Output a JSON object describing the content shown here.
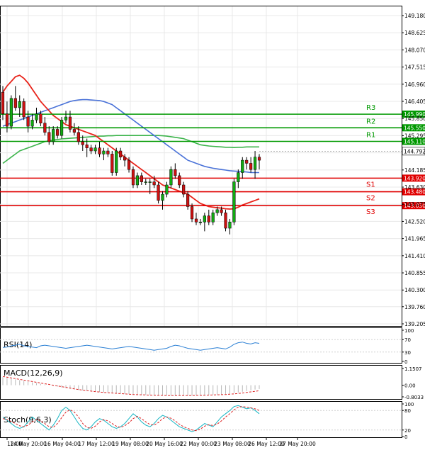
{
  "chart_data": [
    {
      "type": "candlestick",
      "name": "price",
      "y_ticks": [
        "149.180",
        "148.625",
        "148.070",
        "147.515",
        "146.960",
        "146.405",
        "145.850",
        "145.295",
        "144.740",
        "144.185",
        "143.630",
        "143.075",
        "142.520",
        "141.965",
        "141.410",
        "140.855",
        "140.300",
        "139.760",
        "139.205"
      ],
      "ylim": [
        139.205,
        149.18
      ],
      "x_labels": [
        "12:00",
        "14 May 20:00",
        "16 May 04:00",
        "17 May 12:00",
        "19 May 08:00",
        "20 May 16:00",
        "22 May 00:00",
        "23 May 08:00",
        "26 May 12:00",
        "27 May 20:00"
      ],
      "current_price": {
        "label": "144.792",
        "value": 144.792
      },
      "levels": [
        {
          "name": "R3",
          "label": "145.990",
          "value": 145.99,
          "color": "#009900"
        },
        {
          "name": "R2",
          "label": "145.550",
          "value": 145.55,
          "color": "#009900"
        },
        {
          "name": "R1",
          "label": "145.110",
          "value": 145.11,
          "color": "#009900"
        },
        {
          "name": "S1",
          "label": "143.920",
          "value": 143.92,
          "color": "#e00000"
        },
        {
          "name": "S2",
          "label": "143.480",
          "value": 143.48,
          "color": "#e00000"
        },
        {
          "name": "S3",
          "label": "143.030",
          "value": 143.03,
          "color": "#e00000"
        }
      ],
      "candles": [
        [
          146.7,
          146.9,
          145.8,
          146.0
        ],
        [
          146.0,
          146.4,
          145.4,
          145.6
        ],
        [
          145.6,
          146.6,
          145.5,
          146.5
        ],
        [
          146.5,
          146.9,
          146.1,
          146.2
        ],
        [
          146.2,
          146.6,
          145.9,
          146.4
        ],
        [
          146.4,
          146.5,
          145.8,
          145.9
        ],
        [
          145.9,
          146.1,
          145.4,
          145.6
        ],
        [
          145.6,
          146.0,
          145.5,
          145.8
        ],
        [
          145.8,
          146.2,
          145.7,
          146.0
        ],
        [
          146.0,
          146.1,
          145.6,
          145.7
        ],
        [
          145.7,
          145.9,
          145.3,
          145.4
        ],
        [
          145.4,
          145.6,
          145.0,
          145.1
        ],
        [
          145.1,
          145.6,
          145.0,
          145.5
        ],
        [
          145.5,
          145.6,
          145.2,
          145.3
        ],
        [
          145.3,
          145.9,
          145.2,
          145.8
        ],
        [
          145.8,
          146.1,
          145.7,
          145.9
        ],
        [
          145.9,
          146.1,
          145.4,
          145.5
        ],
        [
          145.5,
          145.7,
          145.3,
          145.4
        ],
        [
          145.4,
          145.6,
          145.0,
          145.1
        ],
        [
          145.1,
          145.3,
          144.8,
          145.0
        ],
        [
          145.0,
          145.2,
          144.6,
          144.9
        ],
        [
          144.9,
          145.0,
          144.7,
          144.8
        ],
        [
          144.8,
          145.0,
          144.7,
          144.9
        ],
        [
          144.9,
          145.1,
          144.6,
          144.7
        ],
        [
          144.7,
          144.9,
          144.5,
          144.8
        ],
        [
          144.8,
          144.9,
          144.6,
          144.7
        ],
        [
          144.7,
          144.8,
          144.0,
          144.1
        ],
        [
          144.1,
          144.9,
          144.0,
          144.8
        ],
        [
          144.8,
          144.9,
          144.5,
          144.6
        ],
        [
          144.6,
          144.7,
          144.3,
          144.5
        ],
        [
          144.5,
          144.6,
          144.1,
          144.2
        ],
        [
          144.2,
          144.3,
          143.6,
          143.7
        ],
        [
          143.7,
          144.1,
          143.6,
          144.0
        ],
        [
          144.0,
          144.1,
          143.7,
          143.8
        ],
        [
          143.8,
          143.9,
          143.7,
          143.8
        ],
        [
          143.8,
          143.9,
          143.4,
          143.8
        ],
        [
          143.8,
          144.0,
          143.6,
          143.7
        ],
        [
          143.7,
          143.8,
          143.1,
          143.2
        ],
        [
          143.2,
          143.5,
          142.9,
          143.4
        ],
        [
          143.4,
          143.8,
          143.3,
          143.7
        ],
        [
          143.7,
          144.3,
          143.6,
          144.2
        ],
        [
          144.2,
          144.4,
          143.9,
          144.0
        ],
        [
          144.0,
          144.1,
          143.6,
          143.7
        ],
        [
          143.7,
          143.8,
          143.3,
          143.4
        ],
        [
          143.4,
          143.5,
          142.9,
          143.0
        ],
        [
          143.0,
          143.1,
          142.5,
          142.6
        ],
        [
          142.6,
          142.8,
          142.4,
          142.5
        ],
        [
          142.5,
          142.6,
          142.4,
          142.5
        ],
        [
          142.5,
          142.8,
          142.2,
          142.7
        ],
        [
          142.7,
          142.9,
          142.4,
          142.5
        ],
        [
          142.5,
          142.9,
          142.4,
          142.8
        ],
        [
          142.8,
          143.0,
          142.7,
          142.9
        ],
        [
          142.9,
          143.0,
          142.7,
          142.8
        ],
        [
          142.8,
          142.9,
          142.2,
          142.3
        ],
        [
          142.3,
          142.6,
          142.1,
          142.5
        ],
        [
          142.5,
          143.9,
          142.4,
          143.8
        ],
        [
          143.8,
          144.2,
          143.6,
          144.1
        ],
        [
          144.1,
          144.6,
          143.9,
          144.5
        ],
        [
          144.5,
          144.6,
          144.2,
          144.4
        ],
        [
          144.4,
          144.6,
          144.1,
          144.2
        ],
        [
          144.2,
          144.8,
          143.9,
          144.6
        ],
        [
          144.6,
          144.7,
          144.2,
          144.5
        ]
      ],
      "sma_red": [
        146.7,
        146.9,
        147.05,
        147.2,
        147.25,
        147.15,
        147.0,
        146.8,
        146.6,
        146.4,
        146.25,
        146.1,
        145.95,
        145.85,
        145.75,
        145.65,
        145.6,
        145.55,
        145.5,
        145.45,
        145.4,
        145.35,
        145.3,
        145.2,
        145.1,
        145.0,
        144.9,
        144.8,
        144.7,
        144.6,
        144.5,
        144.4,
        144.3,
        144.2,
        144.1,
        144.0,
        143.9,
        143.8,
        143.7,
        143.65,
        143.6,
        143.55,
        143.5,
        143.45,
        143.4,
        143.3,
        143.2,
        143.1,
        143.05,
        143.0,
        142.98,
        142.96,
        142.95,
        142.93,
        142.92,
        142.93,
        142.98,
        143.05,
        143.1,
        143.15,
        143.2,
        143.25
      ],
      "sma_blue": [
        145.6,
        145.65,
        145.7,
        145.75,
        145.8,
        145.85,
        145.9,
        145.95,
        146.0,
        146.05,
        146.1,
        146.15,
        146.2,
        146.25,
        146.3,
        146.35,
        146.4,
        146.43,
        146.45,
        146.46,
        146.46,
        146.45,
        146.44,
        146.43,
        146.4,
        146.35,
        146.3,
        146.2,
        146.1,
        146.0,
        145.9,
        145.8,
        145.7,
        145.6,
        145.5,
        145.4,
        145.3,
        145.2,
        145.1,
        145.0,
        144.9,
        144.8,
        144.7,
        144.6,
        144.5,
        144.45,
        144.4,
        144.35,
        144.3,
        144.27,
        144.24,
        144.22,
        144.2,
        144.18,
        144.16,
        144.15,
        144.14,
        144.13,
        144.12,
        144.1,
        144.1,
        144.1
      ],
      "sma_green": [
        144.4,
        144.5,
        144.6,
        144.7,
        144.8,
        144.85,
        144.9,
        144.95,
        145.0,
        145.05,
        145.1,
        145.13,
        145.15,
        145.17,
        145.19,
        145.2,
        145.21,
        145.22,
        145.23,
        145.24,
        145.25,
        145.26,
        145.27,
        145.28,
        145.28,
        145.29,
        145.29,
        145.3,
        145.3,
        145.3,
        145.3,
        145.3,
        145.3,
        145.3,
        145.3,
        145.3,
        145.3,
        145.3,
        145.29,
        145.28,
        145.26,
        145.24,
        145.22,
        145.2,
        145.15,
        145.1,
        145.05,
        145.0,
        144.98,
        144.96,
        144.95,
        144.94,
        144.93,
        144.92,
        144.92,
        144.91,
        144.92,
        144.92,
        144.93,
        144.93,
        144.93,
        144.93
      ]
    },
    {
      "type": "line",
      "name": "RSI(14)",
      "label": "RSI(14)",
      "y_ticks": [
        "100",
        "70",
        "30",
        "0"
      ],
      "ylim": [
        0,
        100
      ],
      "values": [
        45,
        46,
        50,
        52,
        55,
        50,
        48,
        46,
        44,
        50,
        52,
        50,
        48,
        46,
        44,
        42,
        44,
        46,
        48,
        50,
        52,
        50,
        48,
        46,
        44,
        42,
        40,
        42,
        44,
        46,
        48,
        46,
        44,
        42,
        40,
        38,
        36,
        38,
        40,
        42,
        48,
        52,
        50,
        46,
        42,
        40,
        38,
        36,
        38,
        40,
        42,
        44,
        42,
        40,
        46,
        55,
        60,
        62,
        58,
        56,
        60,
        58
      ]
    },
    {
      "type": "bar",
      "name": "MACD(12,26,9)",
      "label": "MACD(12,26,9)",
      "y_ticks": [
        "1.1507",
        "0.00",
        "-0.8033"
      ],
      "ylim": [
        -0.8033,
        1.1507
      ],
      "values": [
        0.55,
        0.5,
        0.45,
        0.4,
        0.35,
        0.3,
        0.25,
        0.2,
        0.15,
        0.1,
        0.05,
        0.0,
        -0.05,
        -0.1,
        -0.15,
        -0.2,
        -0.25,
        -0.3,
        -0.33,
        -0.36,
        -0.39,
        -0.42,
        -0.45,
        -0.47,
        -0.5,
        -0.52,
        -0.54,
        -0.56,
        -0.58,
        -0.6,
        -0.62,
        -0.64,
        -0.65,
        -0.66,
        -0.67,
        -0.68,
        -0.69,
        -0.7,
        -0.71,
        -0.71,
        -0.72,
        -0.72,
        -0.72,
        -0.72,
        -0.72,
        -0.71,
        -0.7,
        -0.69,
        -0.68,
        -0.67,
        -0.66,
        -0.65,
        -0.63,
        -0.61,
        -0.58,
        -0.54,
        -0.5,
        -0.45,
        -0.4,
        -0.35,
        -0.3,
        -0.26
      ],
      "signal": [
        0.6,
        0.55,
        0.5,
        0.45,
        0.4,
        0.35,
        0.3,
        0.25,
        0.2,
        0.15,
        0.1,
        0.05,
        0.0,
        -0.05,
        -0.1,
        -0.15,
        -0.2,
        -0.25,
        -0.3,
        -0.34,
        -0.38,
        -0.41,
        -0.44,
        -0.47,
        -0.5,
        -0.52,
        -0.54,
        -0.56,
        -0.58,
        -0.6,
        -0.62,
        -0.64,
        -0.65,
        -0.66,
        -0.67,
        -0.68,
        -0.69,
        -0.7,
        -0.7,
        -0.71,
        -0.71,
        -0.71,
        -0.71,
        -0.71,
        -0.71,
        -0.71,
        -0.7,
        -0.7,
        -0.69,
        -0.68,
        -0.67,
        -0.66,
        -0.65,
        -0.64,
        -0.62,
        -0.6,
        -0.57,
        -0.54,
        -0.5,
        -0.46,
        -0.42,
        -0.38
      ]
    },
    {
      "type": "line",
      "name": "Stoch(9,6,3)",
      "label": "Stoch(9,6,3)",
      "y_ticks": [
        "100",
        "80",
        "20",
        "0"
      ],
      "ylim": [
        0,
        100
      ],
      "k": [
        60,
        50,
        40,
        30,
        25,
        30,
        45,
        60,
        50,
        40,
        30,
        20,
        35,
        55,
        80,
        90,
        80,
        60,
        40,
        25,
        20,
        30,
        45,
        55,
        50,
        40,
        30,
        25,
        30,
        40,
        55,
        70,
        60,
        45,
        35,
        30,
        40,
        55,
        65,
        60,
        50,
        40,
        30,
        25,
        20,
        15,
        20,
        30,
        40,
        35,
        30,
        45,
        60,
        70,
        80,
        92,
        95,
        90,
        85,
        88,
        80,
        70
      ],
      "d": [
        55,
        52,
        46,
        40,
        33,
        30,
        35,
        45,
        52,
        48,
        40,
        30,
        28,
        40,
        58,
        75,
        82,
        75,
        60,
        40,
        28,
        25,
        32,
        45,
        52,
        48,
        40,
        32,
        28,
        33,
        42,
        55,
        62,
        55,
        45,
        37,
        35,
        43,
        55,
        60,
        56,
        48,
        38,
        30,
        25,
        20,
        18,
        23,
        32,
        36,
        34,
        38,
        48,
        60,
        70,
        82,
        90,
        92,
        90,
        88,
        85,
        80
      ]
    }
  ]
}
